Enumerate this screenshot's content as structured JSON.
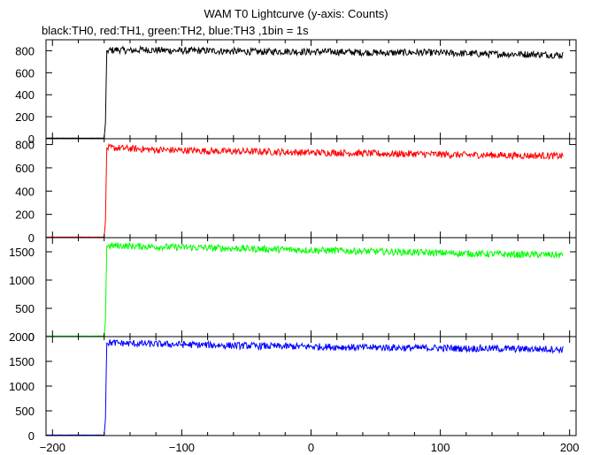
{
  "chart_data": {
    "type": "line",
    "title": "WAM T0 Lightcurve (y-axis: Counts)",
    "subtitle": "black:TH0, red:TH1, green:TH2, blue:TH3 ,1bin = 1s",
    "xlabel": "",
    "ylabel": "",
    "xlim": [
      -205,
      205
    ],
    "x_ticks": [
      "−200",
      "−100",
      "0",
      "100",
      "200"
    ],
    "x_tick_values": [
      -200,
      -100,
      0,
      100,
      200
    ],
    "grid": false,
    "panels": [
      {
        "name": "TH0",
        "color": "#000000",
        "ylim": [
          0,
          900
        ],
        "y_ticks": [
          "0",
          "200",
          "400",
          "600",
          "800"
        ],
        "y_tick_values": [
          0,
          200,
          400,
          600,
          800
        ],
        "x": [
          -205,
          -160,
          -159,
          -158,
          -150,
          -140,
          -130,
          -120,
          -100,
          -80,
          -60,
          -40,
          -20,
          0,
          20,
          40,
          60,
          80,
          100,
          120,
          140,
          160,
          180,
          195
        ],
        "y": [
          5,
          5,
          150,
          800,
          810,
          800,
          810,
          805,
          800,
          800,
          795,
          790,
          795,
          790,
          790,
          785,
          780,
          785,
          780,
          775,
          770,
          770,
          765,
          760
        ]
      },
      {
        "name": "TH1",
        "color": "#ff0000",
        "ylim": [
          0,
          850
        ],
        "y_ticks": [
          "0",
          "200",
          "400",
          "600",
          "800"
        ],
        "y_tick_values": [
          0,
          200,
          400,
          600,
          800
        ],
        "x": [
          -205,
          -160,
          -159,
          -158,
          -150,
          -140,
          -130,
          -120,
          -100,
          -80,
          -60,
          -40,
          -20,
          0,
          20,
          40,
          60,
          80,
          100,
          120,
          140,
          160,
          180,
          195
        ],
        "y": [
          5,
          5,
          150,
          770,
          770,
          765,
          760,
          755,
          750,
          745,
          740,
          740,
          735,
          730,
          730,
          725,
          720,
          720,
          715,
          710,
          710,
          705,
          705,
          700
        ]
      },
      {
        "name": "TH2",
        "color": "#00ff00",
        "ylim": [
          0,
          1750
        ],
        "y_ticks": [
          "0",
          "500",
          "1000",
          "1500"
        ],
        "y_tick_values": [
          0,
          500,
          1000,
          1500
        ],
        "x": [
          -205,
          -160,
          -159,
          -158,
          -150,
          -140,
          -120,
          -100,
          -80,
          -60,
          -40,
          -20,
          0,
          20,
          40,
          60,
          80,
          100,
          120,
          140,
          160,
          180,
          195
        ],
        "y": [
          10,
          10,
          300,
          1600,
          1610,
          1600,
          1590,
          1580,
          1570,
          1560,
          1550,
          1540,
          1530,
          1520,
          1510,
          1500,
          1490,
          1480,
          1470,
          1460,
          1450,
          1450,
          1440
        ]
      },
      {
        "name": "TH3",
        "color": "#0000ff",
        "ylim": [
          0,
          2000
        ],
        "y_ticks": [
          "0",
          "500",
          "1000",
          "1500",
          "2000"
        ],
        "y_tick_values": [
          0,
          500,
          1000,
          1500,
          2000
        ],
        "x": [
          -205,
          -160,
          -159,
          -158,
          -150,
          -140,
          -120,
          -100,
          -80,
          -60,
          -40,
          -20,
          0,
          20,
          40,
          60,
          80,
          100,
          120,
          140,
          160,
          180,
          195
        ],
        "y": [
          10,
          10,
          350,
          1880,
          1870,
          1860,
          1850,
          1840,
          1830,
          1820,
          1810,
          1800,
          1800,
          1790,
          1780,
          1780,
          1770,
          1770,
          1760,
          1760,
          1750,
          1750,
          1740
        ]
      }
    ]
  }
}
